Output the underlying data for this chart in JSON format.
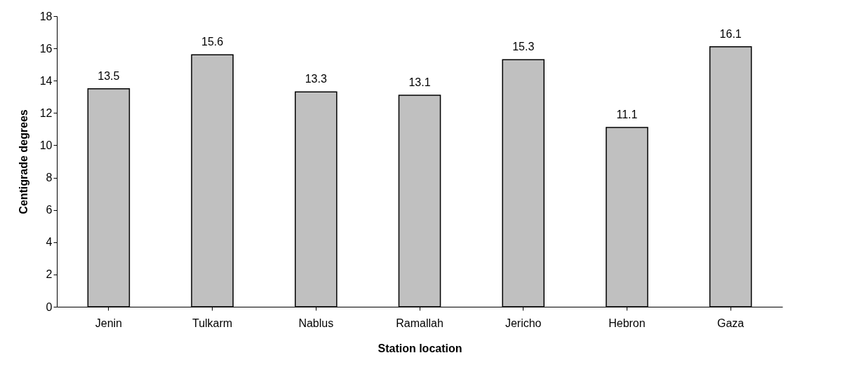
{
  "chart_data": {
    "type": "bar",
    "xlabel": "Station location",
    "ylabel": "Centigrade degrees",
    "categories": [
      "Jenin",
      "Tulkarm",
      "Nablus",
      "Ramallah",
      "Jericho",
      "Hebron",
      "Gaza"
    ],
    "values": [
      13.5,
      15.6,
      13.3,
      13.1,
      15.3,
      11.1,
      16.1
    ],
    "color": "#c0c0c0",
    "ylim": [
      0,
      18
    ],
    "yticks": [
      0,
      2,
      4,
      6,
      8,
      10,
      12,
      14,
      16,
      18
    ],
    "data_labels": true
  }
}
